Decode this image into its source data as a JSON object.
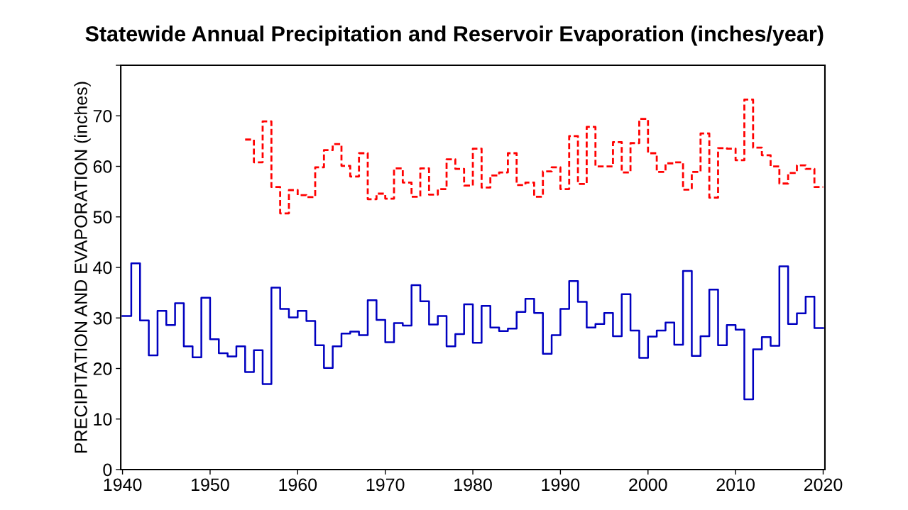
{
  "chart_data": {
    "type": "step",
    "title": "Statewide Annual Precipitation and Reservoir Evaporation (inches/year)",
    "ylabel": "PRECIPITATION AND EVAPORATION (inches)",
    "xlim": [
      1939.8,
      2020.2
    ],
    "xticks": [
      1940,
      1950,
      1960,
      1970,
      1980,
      1990,
      2000,
      2010,
      2020
    ],
    "ylim": [
      0,
      80
    ],
    "yticks": [
      0,
      10,
      20,
      30,
      40,
      50,
      60,
      70,
      {
        "value": 80,
        "label": null
      }
    ],
    "grid": false,
    "legend": false,
    "series": [
      {
        "color": "#0000c0",
        "line_style": "solid",
        "x": [
          1940,
          1941,
          1942,
          1943,
          1944,
          1945,
          1946,
          1947,
          1948,
          1949,
          1950,
          1951,
          1952,
          1953,
          1954,
          1955,
          1956,
          1957,
          1958,
          1959,
          1960,
          1961,
          1962,
          1963,
          1964,
          1965,
          1966,
          1967,
          1968,
          1969,
          1970,
          1971,
          1972,
          1973,
          1974,
          1975,
          1976,
          1977,
          1978,
          1979,
          1980,
          1981,
          1982,
          1983,
          1984,
          1985,
          1986,
          1987,
          1988,
          1989,
          1990,
          1991,
          1992,
          1993,
          1994,
          1995,
          1996,
          1997,
          1998,
          1999,
          2000,
          2001,
          2002,
          2003,
          2004,
          2005,
          2006,
          2007,
          2008,
          2009,
          2010,
          2011,
          2012,
          2013,
          2014,
          2015,
          2016,
          2017,
          2018,
          2019,
          2020
        ],
        "values": [
          30.4,
          40.8,
          29.5,
          22.6,
          31.4,
          28.6,
          32.9,
          24.4,
          22.2,
          34.0,
          25.8,
          23.0,
          22.4,
          24.4,
          19.3,
          23.6,
          16.9,
          36.0,
          31.8,
          30.1,
          31.4,
          29.4,
          24.6,
          20.1,
          24.4,
          26.9,
          27.3,
          26.6,
          33.5,
          29.6,
          25.2,
          29.0,
          28.5,
          36.5,
          33.3,
          28.7,
          30.4,
          24.4,
          26.8,
          32.7,
          25.1,
          32.4,
          28.1,
          27.4,
          27.9,
          31.2,
          33.8,
          31.0,
          22.9,
          26.6,
          31.8,
          37.3,
          33.2,
          28.1,
          28.8,
          31.0,
          26.4,
          34.7,
          27.5,
          22.1,
          26.3,
          27.5,
          29.1,
          24.7,
          39.3,
          22.5,
          26.4,
          35.6,
          24.6,
          28.6,
          27.7,
          13.9,
          23.8,
          26.2,
          24.5,
          40.2,
          28.8,
          30.9,
          34.2,
          28.0,
          28.0
        ]
      },
      {
        "color": "#ff0000",
        "line_style": "dashed",
        "x": [
          1954,
          1955,
          1956,
          1957,
          1958,
          1959,
          1960,
          1961,
          1962,
          1963,
          1964,
          1965,
          1966,
          1967,
          1968,
          1969,
          1970,
          1971,
          1972,
          1973,
          1974,
          1975,
          1976,
          1977,
          1978,
          1979,
          1980,
          1981,
          1982,
          1983,
          1984,
          1985,
          1986,
          1987,
          1988,
          1989,
          1990,
          1991,
          1992,
          1993,
          1994,
          1995,
          1996,
          1997,
          1998,
          1999,
          2000,
          2001,
          2002,
          2003,
          2004,
          2005,
          2006,
          2007,
          2008,
          2009,
          2010,
          2011,
          2012,
          2013,
          2014,
          2015,
          2016,
          2017,
          2018,
          2019,
          2020
        ],
        "values": [
          65.3,
          60.8,
          68.9,
          55.9,
          50.7,
          55.3,
          54.3,
          53.9,
          59.8,
          63.2,
          64.4,
          60.1,
          58.0,
          62.6,
          53.5,
          54.6,
          53.6,
          59.6,
          56.8,
          54.0,
          59.6,
          54.4,
          55.5,
          61.4,
          59.5,
          56.2,
          63.5,
          55.8,
          58.2,
          58.8,
          62.6,
          56.3,
          56.8,
          54.0,
          59.0,
          59.8,
          55.5,
          66.0,
          56.5,
          67.8,
          60.0,
          60.0,
          64.8,
          58.8,
          64.6,
          69.4,
          62.6,
          58.9,
          60.6,
          60.8,
          55.4,
          58.9,
          66.5,
          53.8,
          63.6,
          63.5,
          61.2,
          73.2,
          63.7,
          62.2,
          60.0,
          56.6,
          58.7,
          60.2,
          59.5,
          55.9,
          55.9
        ]
      }
    ]
  }
}
